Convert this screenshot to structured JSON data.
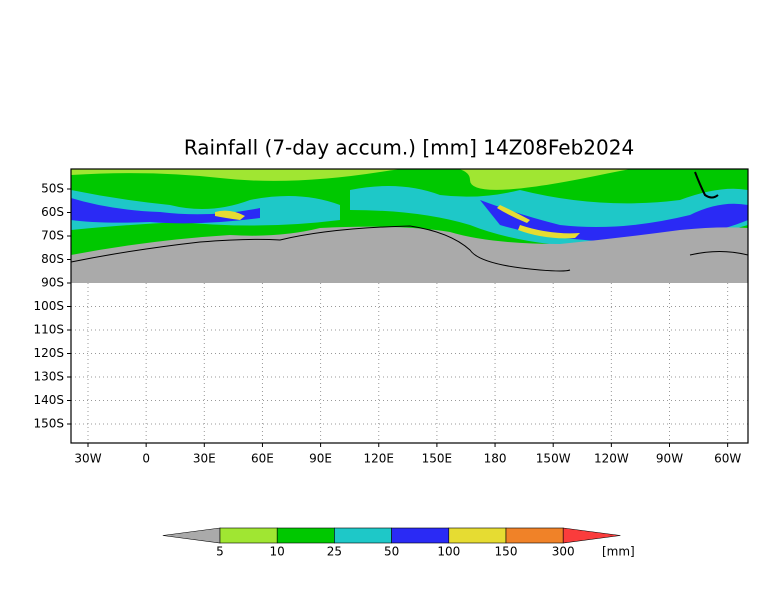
{
  "title": "Rainfall (7-day accum.) [mm] 14Z08Feb2024",
  "x_axis": {
    "labels": [
      "30W",
      "0",
      "30E",
      "60E",
      "90E",
      "120E",
      "150E",
      "180",
      "150W",
      "120W",
      "90W",
      "60W"
    ]
  },
  "y_axis": {
    "labels": [
      "50S",
      "60S",
      "70S",
      "80S",
      "90S",
      "100S",
      "110S",
      "120S",
      "130S",
      "140S",
      "150S"
    ]
  },
  "colorbar": {
    "labels": [
      5,
      10,
      25,
      50,
      100,
      150,
      300
    ],
    "unit": "[mm]",
    "colors": [
      "#aaaaaa",
      "#a0e632",
      "#00c800",
      "#1ec8c8",
      "#2a2af5",
      "#e6dc32",
      "#f08228",
      "#fa3c3c"
    ]
  }
}
